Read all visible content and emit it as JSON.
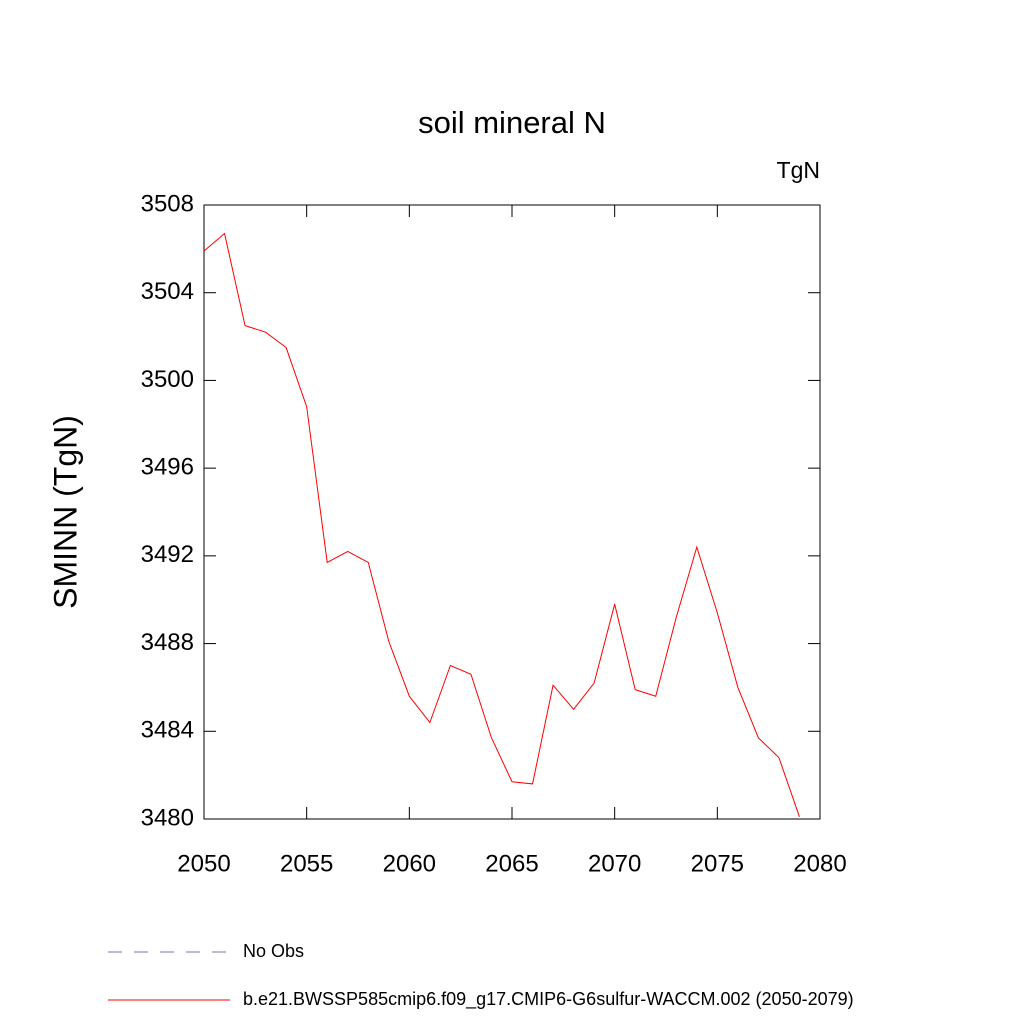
{
  "chart_data": {
    "type": "line",
    "title": "soil mineral N",
    "units_label": "TgN",
    "y_label": "SMINN  (TgN)",
    "x": [
      2050,
      2051,
      2052,
      2053,
      2054,
      2055,
      2056,
      2057,
      2058,
      2059,
      2060,
      2061,
      2062,
      2063,
      2064,
      2065,
      2066,
      2067,
      2068,
      2069,
      2070,
      2071,
      2072,
      2073,
      2074,
      2075,
      2076,
      2077,
      2078,
      2079
    ],
    "series": [
      {
        "name": "b.e21.BWSSP585cmip6.f09_g17.CMIP6-G6sulfur-WACCM.002 (2050-2079)",
        "color": "#ff0000",
        "values": [
          3505.9,
          3506.7,
          3502.5,
          3502.2,
          3501.5,
          3498.8,
          3491.7,
          3492.2,
          3491.7,
          3488.1,
          3485.6,
          3484.4,
          3487.0,
          3486.6,
          3483.7,
          3481.7,
          3481.6,
          3486.1,
          3485.0,
          3486.2,
          3489.8,
          3485.9,
          3485.6,
          3489.2,
          3492.4,
          3489.4,
          3486.0,
          3483.7,
          3482.8,
          3480.1
        ]
      }
    ],
    "obs_legend": {
      "name": "No Obs",
      "color": "#7b6fb0",
      "dashed": true
    },
    "xlim": [
      2050,
      2080
    ],
    "xticks": [
      2050,
      2055,
      2060,
      2065,
      2070,
      2075,
      2080
    ],
    "ylim": [
      3480,
      3508
    ],
    "yticks": [
      3480,
      3484,
      3488,
      3492,
      3496,
      3500,
      3504,
      3508
    ]
  }
}
